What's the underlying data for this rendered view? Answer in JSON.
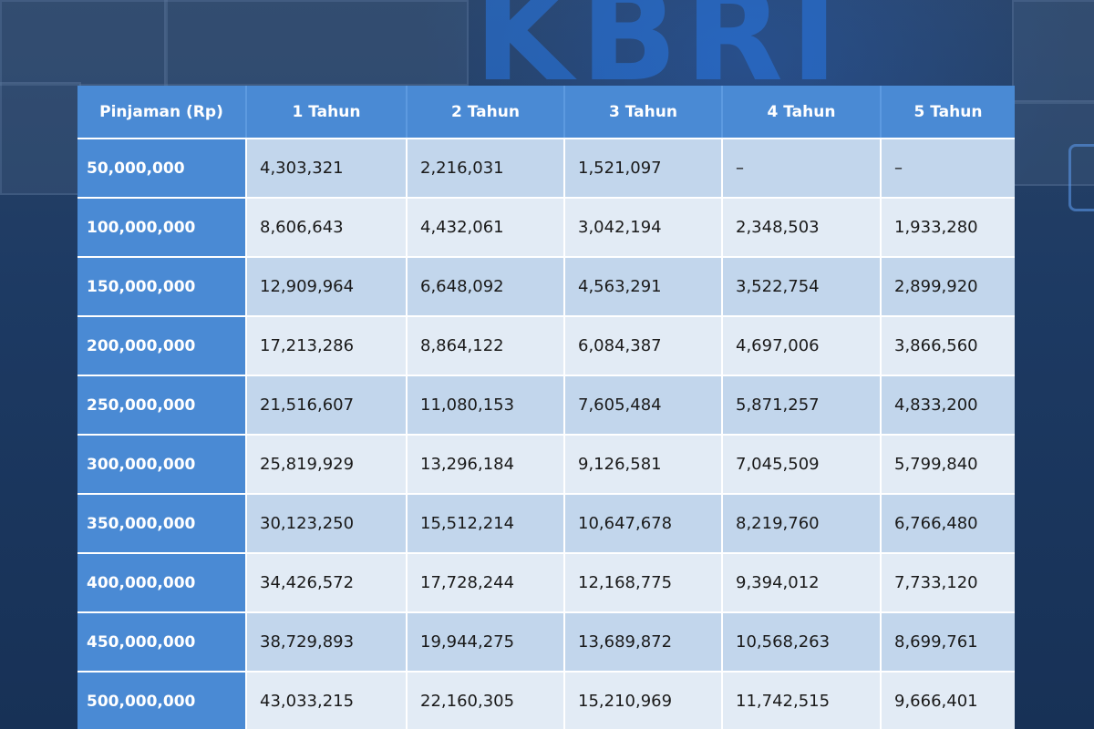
{
  "background": {
    "brand_text": "KBRI"
  },
  "table": {
    "headers": [
      "Pinjaman (Rp)",
      "1 Tahun",
      "2 Tahun",
      "3 Tahun",
      "4 Tahun",
      "5 Tahun"
    ],
    "rows": [
      {
        "loan": "50,000,000",
        "values": [
          "4,303,321",
          "2,216,031",
          "1,521,097",
          "–",
          "–"
        ]
      },
      {
        "loan": "100,000,000",
        "values": [
          "8,606,643",
          "4,432,061",
          "3,042,194",
          "2,348,503",
          "1,933,280"
        ]
      },
      {
        "loan": "150,000,000",
        "values": [
          "12,909,964",
          "6,648,092",
          "4,563,291",
          "3,522,754",
          "2,899,920"
        ]
      },
      {
        "loan": "200,000,000",
        "values": [
          "17,213,286",
          "8,864,122",
          "6,084,387",
          "4,697,006",
          "3,866,560"
        ]
      },
      {
        "loan": "250,000,000",
        "values": [
          "21,516,607",
          "11,080,153",
          "7,605,484",
          "5,871,257",
          "4,833,200"
        ]
      },
      {
        "loan": "300,000,000",
        "values": [
          "25,819,929",
          "13,296,184",
          "9,126,581",
          "7,045,509",
          "5,799,840"
        ]
      },
      {
        "loan": "350,000,000",
        "values": [
          "30,123,250",
          "15,512,214",
          "10,647,678",
          "8,219,760",
          "6,766,480"
        ]
      },
      {
        "loan": "400,000,000",
        "values": [
          "34,426,572",
          "17,728,244",
          "12,168,775",
          "9,394,012",
          "7,733,120"
        ]
      },
      {
        "loan": "450,000,000",
        "values": [
          "38,729,893",
          "19,944,275",
          "13,689,872",
          "10,568,263",
          "8,699,761"
        ]
      },
      {
        "loan": "500,000,000",
        "values": [
          "43,033,215",
          "22,160,305",
          "15,210,969",
          "11,742,515",
          "9,666,401"
        ]
      }
    ]
  },
  "colors": {
    "header_blue": "#4a8ad4",
    "row_dark": "#c2d6ec",
    "row_light": "#e2ebf5"
  }
}
